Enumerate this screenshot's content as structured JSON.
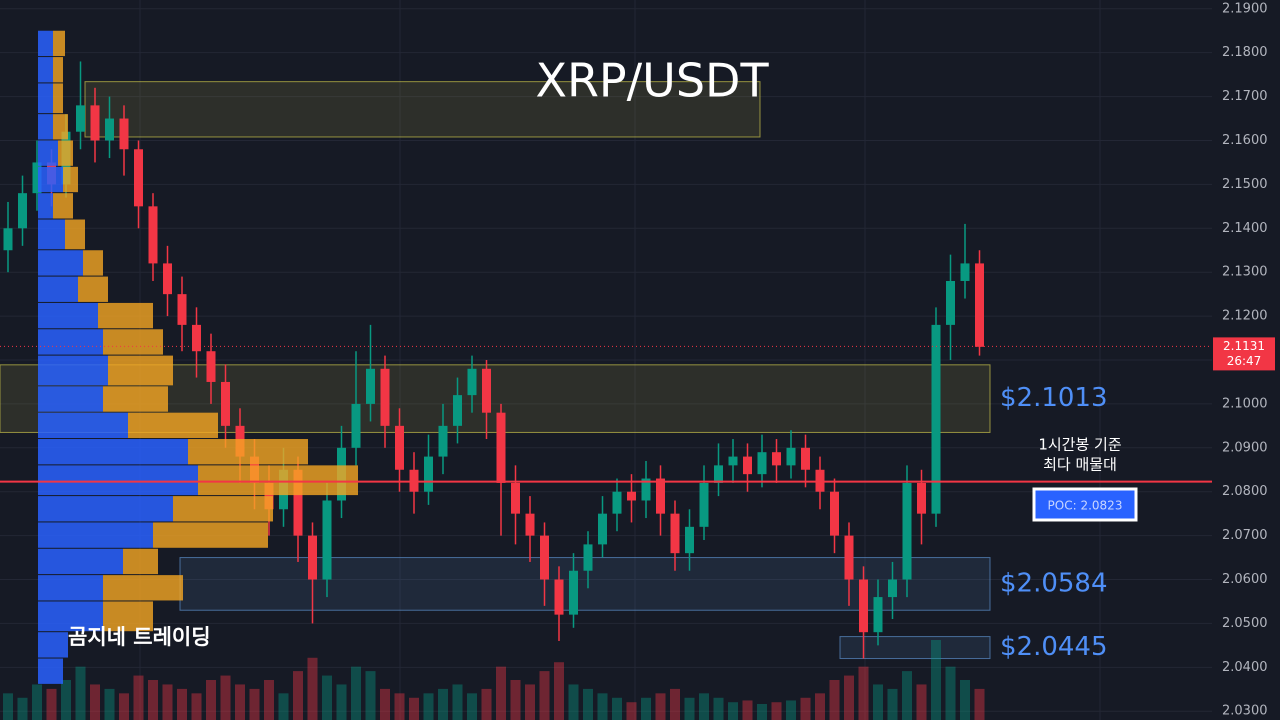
{
  "chart_data": {
    "type": "candlestick",
    "title": "XRP/USDT",
    "ylim": [
      2.028,
      2.192
    ],
    "yticks": [
      {
        "value": 2.03,
        "label": "2.0300"
      },
      {
        "value": 2.04,
        "label": "2.0400"
      },
      {
        "value": 2.05,
        "label": "2.0500"
      },
      {
        "value": 2.06,
        "label": "2.0600"
      },
      {
        "value": 2.07,
        "label": "2.0700"
      },
      {
        "value": 2.08,
        "label": "2.0800"
      },
      {
        "value": 2.09,
        "label": "2.0900"
      },
      {
        "value": 2.1,
        "label": "2.1000"
      },
      {
        "value": 2.11,
        "label": "2.1100"
      },
      {
        "value": 2.12,
        "label": "2.1200"
      },
      {
        "value": 2.13,
        "label": "2.1300"
      },
      {
        "value": 2.14,
        "label": "2.1400"
      },
      {
        "value": 2.15,
        "label": "2.1500"
      },
      {
        "value": 2.16,
        "label": "2.1600"
      },
      {
        "value": 2.17,
        "label": "2.1700"
      },
      {
        "value": 2.18,
        "label": "2.1800"
      },
      {
        "value": 2.19,
        "label": "2.1900"
      }
    ],
    "up_color": "#089981",
    "down_color": "#f23645",
    "candles": [
      [
        2.135,
        2.146,
        2.13,
        2.14
      ],
      [
        2.14,
        2.152,
        2.136,
        2.148
      ],
      [
        2.148,
        2.16,
        2.144,
        2.155
      ],
      [
        2.155,
        2.158,
        2.145,
        2.15
      ],
      [
        2.15,
        2.166,
        2.147,
        2.162
      ],
      [
        2.162,
        2.178,
        2.158,
        2.168
      ],
      [
        2.168,
        2.172,
        2.155,
        2.16
      ],
      [
        2.16,
        2.17,
        2.156,
        2.165
      ],
      [
        2.165,
        2.168,
        2.152,
        2.158
      ],
      [
        2.158,
        2.16,
        2.14,
        2.145
      ],
      [
        2.145,
        2.148,
        2.128,
        2.132
      ],
      [
        2.132,
        2.136,
        2.12,
        2.125
      ],
      [
        2.125,
        2.129,
        2.112,
        2.118
      ],
      [
        2.118,
        2.122,
        2.106,
        2.112
      ],
      [
        2.112,
        2.116,
        2.1,
        2.105
      ],
      [
        2.105,
        2.109,
        2.09,
        2.095
      ],
      [
        2.095,
        2.099,
        2.082,
        2.088
      ],
      [
        2.088,
        2.092,
        2.076,
        2.082
      ],
      [
        2.082,
        2.086,
        2.07,
        2.076
      ],
      [
        2.076,
        2.09,
        2.072,
        2.085
      ],
      [
        2.085,
        2.088,
        2.064,
        2.07
      ],
      [
        2.07,
        2.073,
        2.05,
        2.06
      ],
      [
        2.06,
        2.082,
        2.056,
        2.078
      ],
      [
        2.078,
        2.095,
        2.074,
        2.09
      ],
      [
        2.09,
        2.112,
        2.086,
        2.1
      ],
      [
        2.1,
        2.118,
        2.096,
        2.108
      ],
      [
        2.108,
        2.111,
        2.09,
        2.095
      ],
      [
        2.095,
        2.099,
        2.08,
        2.085
      ],
      [
        2.085,
        2.089,
        2.075,
        2.08
      ],
      [
        2.08,
        2.093,
        2.077,
        2.088
      ],
      [
        2.088,
        2.1,
        2.084,
        2.095
      ],
      [
        2.095,
        2.106,
        2.091,
        2.102
      ],
      [
        2.102,
        2.111,
        2.098,
        2.108
      ],
      [
        2.108,
        2.11,
        2.092,
        2.098
      ],
      [
        2.098,
        2.1,
        2.07,
        2.082
      ],
      [
        2.082,
        2.086,
        2.068,
        2.075
      ],
      [
        2.075,
        2.079,
        2.064,
        2.07
      ],
      [
        2.07,
        2.073,
        2.054,
        2.06
      ],
      [
        2.06,
        2.063,
        2.046,
        2.052
      ],
      [
        2.052,
        2.066,
        2.049,
        2.062
      ],
      [
        2.062,
        2.071,
        2.058,
        2.068
      ],
      [
        2.068,
        2.079,
        2.065,
        2.075
      ],
      [
        2.075,
        2.083,
        2.071,
        2.08
      ],
      [
        2.08,
        2.084,
        2.073,
        2.078
      ],
      [
        2.078,
        2.087,
        2.074,
        2.083
      ],
      [
        2.083,
        2.086,
        2.07,
        2.075
      ],
      [
        2.075,
        2.078,
        2.062,
        2.066
      ],
      [
        2.066,
        2.076,
        2.062,
        2.072
      ],
      [
        2.072,
        2.086,
        2.069,
        2.082
      ],
      [
        2.082,
        2.091,
        2.079,
        2.086
      ],
      [
        2.086,
        2.092,
        2.082,
        2.088
      ],
      [
        2.088,
        2.091,
        2.08,
        2.084
      ],
      [
        2.084,
        2.093,
        2.081,
        2.089
      ],
      [
        2.089,
        2.092,
        2.082,
        2.086
      ],
      [
        2.086,
        2.094,
        2.083,
        2.09
      ],
      [
        2.09,
        2.093,
        2.081,
        2.085
      ],
      [
        2.085,
        2.088,
        2.076,
        2.08
      ],
      [
        2.08,
        2.083,
        2.066,
        2.07
      ],
      [
        2.07,
        2.073,
        2.054,
        2.06
      ],
      [
        2.06,
        2.063,
        2.042,
        2.048
      ],
      [
        2.048,
        2.06,
        2.045,
        2.056
      ],
      [
        2.056,
        2.064,
        2.051,
        2.06
      ],
      [
        2.06,
        2.086,
        2.056,
        2.082
      ],
      [
        2.082,
        2.085,
        2.068,
        2.075
      ],
      [
        2.075,
        2.122,
        2.072,
        2.118
      ],
      [
        2.118,
        2.134,
        2.11,
        2.128
      ],
      [
        2.128,
        2.141,
        2.124,
        2.132
      ],
      [
        2.132,
        2.135,
        2.111,
        2.113
      ]
    ],
    "volume": [
      30,
      25,
      40,
      35,
      45,
      60,
      40,
      35,
      30,
      50,
      45,
      40,
      35,
      30,
      45,
      50,
      40,
      35,
      45,
      30,
      55,
      70,
      50,
      40,
      60,
      55,
      35,
      30,
      25,
      30,
      35,
      40,
      30,
      35,
      60,
      45,
      40,
      55,
      65,
      40,
      35,
      30,
      25,
      20,
      25,
      30,
      35,
      25,
      30,
      25,
      20,
      22,
      18,
      20,
      22,
      25,
      30,
      45,
      50,
      60,
      40,
      35,
      55,
      40,
      90,
      60,
      45,
      35
    ],
    "volume_profile": {
      "bins": [
        2.036,
        2.042,
        2.048,
        2.055,
        2.061,
        2.067,
        2.073,
        2.079,
        2.086,
        2.092,
        2.098,
        2.104,
        2.111,
        2.117,
        2.123,
        2.129,
        2.135,
        2.142,
        2.148,
        2.154,
        2.16,
        2.166,
        2.173,
        2.179,
        2.185
      ],
      "buy": [
        25,
        30,
        65,
        65,
        85,
        115,
        135,
        160,
        150,
        90,
        65,
        70,
        65,
        60,
        40,
        45,
        27,
        15,
        25,
        20,
        15,
        15,
        15,
        15
      ],
      "sell": [
        0,
        0,
        50,
        80,
        35,
        115,
        100,
        160,
        120,
        90,
        65,
        65,
        60,
        55,
        30,
        20,
        20,
        20,
        15,
        15,
        15,
        10,
        10,
        12
      ],
      "buy_color": "#2962ff",
      "sell_color": "#f5a623"
    },
    "zones": [
      {
        "top": 2.1734,
        "bottom": 2.1608,
        "color": "#c8c24a"
      },
      {
        "top": 2.1089,
        "bottom": 2.0935,
        "color": "#c8c24a",
        "label": "$2.1013"
      },
      {
        "top": 2.065,
        "bottom": 2.053,
        "color": "#5b8fc9",
        "label": "$2.0584"
      },
      {
        "top": 2.047,
        "bottom": 2.042,
        "color": "#5b8fc9",
        "label": "$2.0445"
      }
    ],
    "poc": 2.0823,
    "last_price": 2.1131,
    "annotations": {
      "poc_label": "POC: 2.0823",
      "poc_note_1": "1시간봉 기준",
      "poc_note_2": "최다 매물대",
      "countdown": "26:47",
      "watermark": "곰지네 트레이딩"
    }
  }
}
